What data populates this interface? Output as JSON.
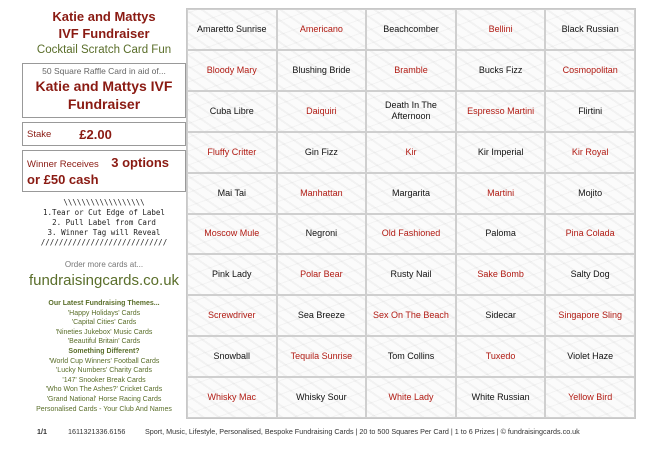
{
  "header": {
    "title_line1": "Katie and Mattys",
    "title_line2": "IVF Fundraiser",
    "subtitle": "Cocktail Scratch Card Fun"
  },
  "raffle": {
    "intro": "50 Square Raffle Card in aid of...",
    "name": "Katie and Mattys IVF Fundraiser"
  },
  "stake": {
    "label": "Stake",
    "value": "£2.00"
  },
  "winner": {
    "label": "Winner Receives",
    "options": "3 options",
    "cash": "or £50 cash"
  },
  "steps": [
    "\\\\\\\\\\\\\\\\\\\\\\\\\\\\\\\\\\\\",
    "1.Tear or Cut Edge of Label",
    "2. Pull Label from Card",
    "3. Winner Tag will Reveal",
    "////////////////////////////"
  ],
  "order": {
    "text": "Order more cards at...",
    "site": "fundraisingcards.co.uk"
  },
  "themes": {
    "heading": "Our Latest Fundraising Themes...",
    "list1": [
      "'Happy Holidays' Cards",
      "'Capital Cities' Cards",
      "'Nineties Jukebox' Music Cards",
      "'Beautiful Britain' Cards"
    ],
    "heading2": "Something Different?",
    "list2": [
      "'World Cup Winners' Football Cards",
      "'Lucky Numbers' Charity Cards",
      "'147' Snooker Break Cards",
      "'Who Won The Ashes?' Cricket Cards",
      "'Grand National' Horse Racing Cards",
      "Personalised Cards - Your Club And Names"
    ]
  },
  "grid": [
    "Amaretto Sunrise",
    "Americano",
    "Beachcomber",
    "Bellini",
    "Black Russian",
    "Bloody Mary",
    "Blushing Bride",
    "Bramble",
    "Bucks Fizz",
    "Cosmopolitan",
    "Cuba Libre",
    "Daiquiri",
    "Death In The Afternoon",
    "Espresso Martini",
    "Flirtini",
    "Fluffy Critter",
    "Gin Fizz",
    "Kir",
    "Kir Imperial",
    "Kir Royal",
    "Mai Tai",
    "Manhattan",
    "Margarita",
    "Martini",
    "Mojito",
    "Moscow Mule",
    "Negroni",
    "Old Fashioned",
    "Paloma",
    "Pina Colada",
    "Pink Lady",
    "Polar Bear",
    "Rusty Nail",
    "Sake Bomb",
    "Salty Dog",
    "Screwdriver",
    "Sea Breeze",
    "Sex On The Beach",
    "Sidecar",
    "Singapore Sling",
    "Snowball",
    "Tequila Sunrise",
    "Tom Collins",
    "Tuxedo",
    "Violet Haze",
    "Whisky Mac",
    "Whisky Sour",
    "White Lady",
    "White Russian",
    "Yellow Bird"
  ],
  "footer": {
    "page": "1/1",
    "ref": "1611321336.6156",
    "info": "Sport, Music, Lifestyle, Personalised, Bespoke Fundraising Cards | 20 to 500 Squares Per Card | 1 to 6 Prizes | © fundraisingcards.co.uk"
  },
  "colors": {
    "accent_red": "#b11a12",
    "accent_green": "#5a6e2a"
  }
}
